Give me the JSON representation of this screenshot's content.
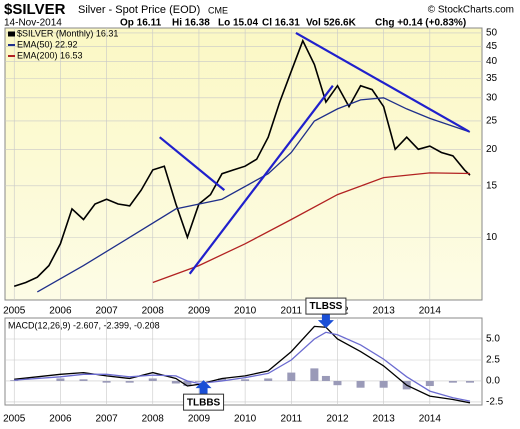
{
  "chart_data": [
    {
      "type": "line",
      "title": "$SILVER",
      "subtitle": "Silver - Spot Price (EOD)",
      "exchange": "CME",
      "source": "© StockCharts.com",
      "date": "14-Nov-2014",
      "quote": [
        "Op 16.11",
        "Hi 16.38",
        "Lo 15.04",
        "Cl 16.31",
        "Vol 526.6K",
        "Chg +0.14 (+0.83%)"
      ],
      "log_scale": true,
      "grid": true,
      "legend": "top-left",
      "xlim": [
        2004.8,
        2015.13
      ],
      "xticks": [
        2005,
        2006,
        2007,
        2008,
        2009,
        2010,
        2011,
        2012,
        2013,
        2014
      ],
      "ylim": [
        6.1,
        52
      ],
      "yticks": [
        10,
        15,
        20,
        25,
        30,
        35,
        40,
        45,
        50
      ],
      "series": [
        {
          "name": "$SILVER (Monthly) 16.31",
          "color": "#000000",
          "x": [
            2005,
            2005.25,
            2005.5,
            2005.75,
            2006,
            2006.25,
            2006.5,
            2006.75,
            2007,
            2007.25,
            2007.5,
            2007.75,
            2008,
            2008.25,
            2008.5,
            2008.75,
            2009,
            2009.25,
            2009.5,
            2009.75,
            2010,
            2010.25,
            2010.5,
            2010.75,
            2011,
            2011.25,
            2011.5,
            2011.75,
            2012,
            2012.25,
            2012.5,
            2012.75,
            2013,
            2013.25,
            2013.5,
            2013.75,
            2014,
            2014.25,
            2014.5,
            2014.75,
            2014.87
          ],
          "values": [
            6.8,
            7.0,
            7.3,
            8.0,
            9.5,
            12.5,
            11.5,
            13.0,
            13.5,
            13.0,
            12.8,
            14.5,
            17.0,
            17.5,
            13.0,
            10.0,
            13.0,
            14.0,
            16.5,
            17.0,
            17.5,
            18.5,
            22.0,
            29.0,
            37.0,
            47.0,
            39.0,
            29.0,
            33.0,
            28.0,
            33.0,
            32.0,
            28.0,
            20.0,
            22.0,
            20.0,
            20.5,
            19.5,
            19.0,
            17.0,
            16.31
          ]
        },
        {
          "name": "EMA(50) 22.92",
          "color": "#1f2f8a",
          "x": [
            2005.5,
            2006.5,
            2007.5,
            2008.5,
            2009.5,
            2010.5,
            2011,
            2011.5,
            2012,
            2012.5,
            2013,
            2013.5,
            2014,
            2014.87
          ],
          "values": [
            6.5,
            8.0,
            10.0,
            12.5,
            13.5,
            16.5,
            19.5,
            25.0,
            27.5,
            29.5,
            30.0,
            27.5,
            25.5,
            22.92
          ]
        },
        {
          "name": "EMA(200) 16.53",
          "color": "#b22222",
          "x": [
            2008,
            2009,
            2010,
            2011,
            2012,
            2013,
            2014,
            2014.87
          ],
          "values": [
            7.0,
            8.0,
            9.5,
            11.5,
            14.0,
            16.0,
            16.6,
            16.53
          ]
        }
      ],
      "trendlines": [
        {
          "color": "#2020cc",
          "x": [
            2008.15,
            2009.55
          ],
          "y": [
            22,
            14.5
          ]
        },
        {
          "color": "#2020cc",
          "x": [
            2008.8,
            2011.9
          ],
          "y": [
            7.5,
            33
          ]
        },
        {
          "color": "#2020cc",
          "x": [
            2011.1,
            2014.85
          ],
          "y": [
            50,
            23
          ]
        }
      ]
    },
    {
      "type": "line",
      "title": "MACD(12,26,9) -2.607, -2.399, -0.208",
      "grid": true,
      "xlim": [
        2004.8,
        2015.13
      ],
      "xticks": [
        2005,
        2006,
        2007,
        2008,
        2009,
        2010,
        2011,
        2012,
        2013,
        2014
      ],
      "ylim": [
        -2.86,
        7.5
      ],
      "yticks": [
        {
          "value": -2.5,
          "label": "-2.5"
        },
        {
          "value": 0,
          "label": "0.0"
        },
        {
          "value": 2.5,
          "label": "2.5"
        },
        {
          "value": 5,
          "label": "5.0"
        }
      ],
      "series": [
        {
          "color": "#9a9ab8",
          "bars": true,
          "x": [
            2005,
            2006,
            2006.5,
            2007,
            2007.5,
            2008,
            2008.5,
            2008.75,
            2009,
            2009.5,
            2010,
            2010.5,
            2011,
            2011.5,
            2011.75,
            2012,
            2012.5,
            2013,
            2013.5,
            2014,
            2014.5,
            2014.87
          ],
          "values": [
            0.1,
            0.3,
            0.2,
            -0.2,
            -0.2,
            0.3,
            -0.3,
            -0.6,
            -0.1,
            0.3,
            0.2,
            0.3,
            1.0,
            1.5,
            0.6,
            -0.5,
            -0.8,
            -0.8,
            -1.0,
            -0.6,
            -0.2,
            -0.2
          ]
        },
        {
          "color": "#000000",
          "x": [
            2005,
            2006,
            2006.5,
            2007,
            2007.5,
            2008,
            2008.5,
            2008.75,
            2009,
            2009.5,
            2010,
            2010.5,
            2011,
            2011.5,
            2011.75,
            2012,
            2012.5,
            2013,
            2013.5,
            2014,
            2014.5,
            2014.87
          ],
          "values": [
            0.2,
            0.8,
            1.0,
            0.6,
            0.3,
            1.0,
            0.3,
            -0.6,
            -0.4,
            0.3,
            0.6,
            1.2,
            3.5,
            6.5,
            6.4,
            5.0,
            3.5,
            1.8,
            -0.5,
            -1.8,
            -2.2,
            -2.6
          ]
        },
        {
          "color": "#6b6bd0",
          "x": [
            2005,
            2006,
            2006.5,
            2007,
            2007.5,
            2008,
            2008.5,
            2008.75,
            2009,
            2009.5,
            2010,
            2010.5,
            2011,
            2011.5,
            2011.75,
            2012,
            2012.5,
            2013,
            2013.5,
            2014,
            2014.5,
            2014.87
          ],
          "values": [
            0.1,
            0.5,
            0.8,
            0.8,
            0.5,
            0.7,
            0.6,
            0.0,
            -0.3,
            0.0,
            0.4,
            0.9,
            2.5,
            5.0,
            5.8,
            5.5,
            4.3,
            2.6,
            0.5,
            -1.2,
            -2.0,
            -2.4
          ]
        }
      ],
      "annotations": [
        {
          "text": "TLBSS",
          "x": 2011.75,
          "y": 6.3,
          "direction": "down"
        },
        {
          "text": "TLBBS",
          "x": 2009.1,
          "y": 0.1,
          "direction": "up"
        }
      ]
    }
  ]
}
